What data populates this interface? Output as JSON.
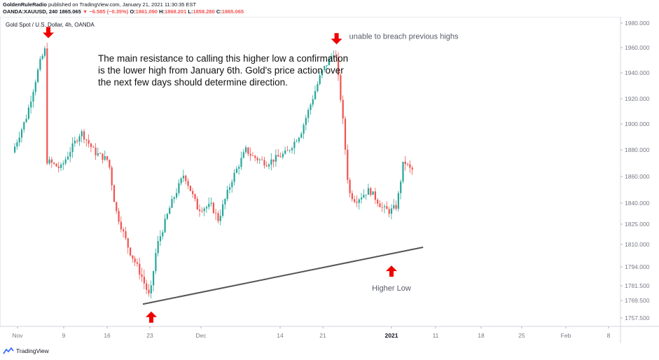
{
  "header": {
    "author": "GoldenRuleRadio",
    "published": "published on TradingView.com, January 21, 2021 11:30:35 EST",
    "symbol": "OANDA:XAUUSD, 240",
    "last": "1865.065",
    "change": "▼ −6.585 (−0.35%)",
    "o_label": "O:",
    "o": "1861.090",
    "h_label": "H:",
    "h": "1868.201",
    "l_label": "L:",
    "l": "1858.280",
    "c_label": "C:",
    "c": "1865.065"
  },
  "chart_data": {
    "type": "candlestick",
    "title": "Gold Spot / U.S. Dollar, 4h, OANDA",
    "y_ticks": [
      1980.0,
      1960.0,
      1940.0,
      1920.0,
      1900.0,
      1880.0,
      1860.0,
      1840.0,
      1825.0,
      1810.0,
      1794.0,
      1781.5,
      1769.5,
      1757.5
    ],
    "y_tick_labels": [
      "1980.000",
      "1960.000",
      "1940.000",
      "1920.000",
      "1900.000",
      "1880.000",
      "1860.000",
      "1840.000",
      "1825.000",
      "1810.000",
      "1794.000",
      "1781.500",
      "1769.500",
      "1757.500"
    ],
    "x_ticks": [
      {
        "label": "Nov",
        "bold": false
      },
      {
        "label": "9",
        "bold": false
      },
      {
        "label": "16",
        "bold": false
      },
      {
        "label": "23",
        "bold": false
      },
      {
        "label": "Dec",
        "bold": false
      },
      {
        "label": "14",
        "bold": false
      },
      {
        "label": "21",
        "bold": false
      },
      {
        "label": "2021",
        "bold": true
      },
      {
        "label": "11",
        "bold": false
      },
      {
        "label": "18",
        "bold": false
      },
      {
        "label": "25",
        "bold": false
      },
      {
        "label": "Feb",
        "bold": false
      },
      {
        "label": "8",
        "bold": false
      }
    ],
    "price_path": [
      [
        "2020-11-02",
        1878
      ],
      [
        "2020-11-04",
        1905
      ],
      [
        "2020-11-06",
        1948
      ],
      [
        "2020-11-09",
        1962
      ],
      [
        "2020-11-09",
        1872
      ],
      [
        "2020-11-11",
        1866
      ],
      [
        "2020-11-13",
        1885
      ],
      [
        "2020-11-16",
        1894
      ],
      [
        "2020-11-18",
        1878
      ],
      [
        "2020-11-20",
        1872
      ],
      [
        "2020-11-23",
        1836
      ],
      [
        "2020-11-25",
        1806
      ],
      [
        "2020-11-27",
        1786
      ],
      [
        "2020-11-30",
        1772
      ],
      [
        "2020-12-01",
        1808
      ],
      [
        "2020-12-03",
        1838
      ],
      [
        "2020-12-07",
        1862
      ],
      [
        "2020-12-09",
        1836
      ],
      [
        "2020-12-11",
        1838
      ],
      [
        "2020-12-14",
        1828
      ],
      [
        "2020-12-16",
        1858
      ],
      [
        "2020-12-18",
        1880
      ],
      [
        "2020-12-21",
        1875
      ],
      [
        "2020-12-23",
        1870
      ],
      [
        "2020-12-28",
        1878
      ],
      [
        "2020-12-30",
        1893
      ],
      [
        "2021-01-04",
        1940
      ],
      [
        "2021-01-06",
        1958
      ],
      [
        "2021-01-07",
        1912
      ],
      [
        "2021-01-08",
        1848
      ],
      [
        "2021-01-11",
        1842
      ],
      [
        "2021-01-13",
        1850
      ],
      [
        "2021-01-15",
        1836
      ],
      [
        "2021-01-18",
        1834
      ],
      [
        "2021-01-19",
        1838
      ],
      [
        "2021-01-20",
        1872
      ],
      [
        "2021-01-21",
        1865
      ]
    ],
    "trendline": [
      [
        "2020-11-30",
        1767
      ],
      [
        "2021-01-22",
        1808
      ]
    ],
    "annotations": [
      {
        "type": "arrow-down",
        "at": [
          "2020-11-09",
          1970
        ],
        "label": ""
      },
      {
        "type": "arrow-down",
        "at": [
          "2021-01-06",
          1965
        ],
        "label": "unable to breach previous highs"
      },
      {
        "type": "arrow-up",
        "at": [
          "2020-11-30",
          1760
        ],
        "label": ""
      },
      {
        "type": "arrow-up",
        "at": [
          "2021-01-18",
          1793
        ],
        "label": "Higher Low"
      }
    ],
    "note": "The main resistance to calling this higher low a confirmation is the lower high from January 6th.  Gold's price action over the next few days should determine direction."
  },
  "footer": {
    "brand": "TradingView"
  },
  "colors": {
    "up": "#26a69a",
    "down": "#ef5350",
    "text": "#131722",
    "axis": "#787b86",
    "arrow": "#ee0000",
    "trendline": "#555555"
  }
}
